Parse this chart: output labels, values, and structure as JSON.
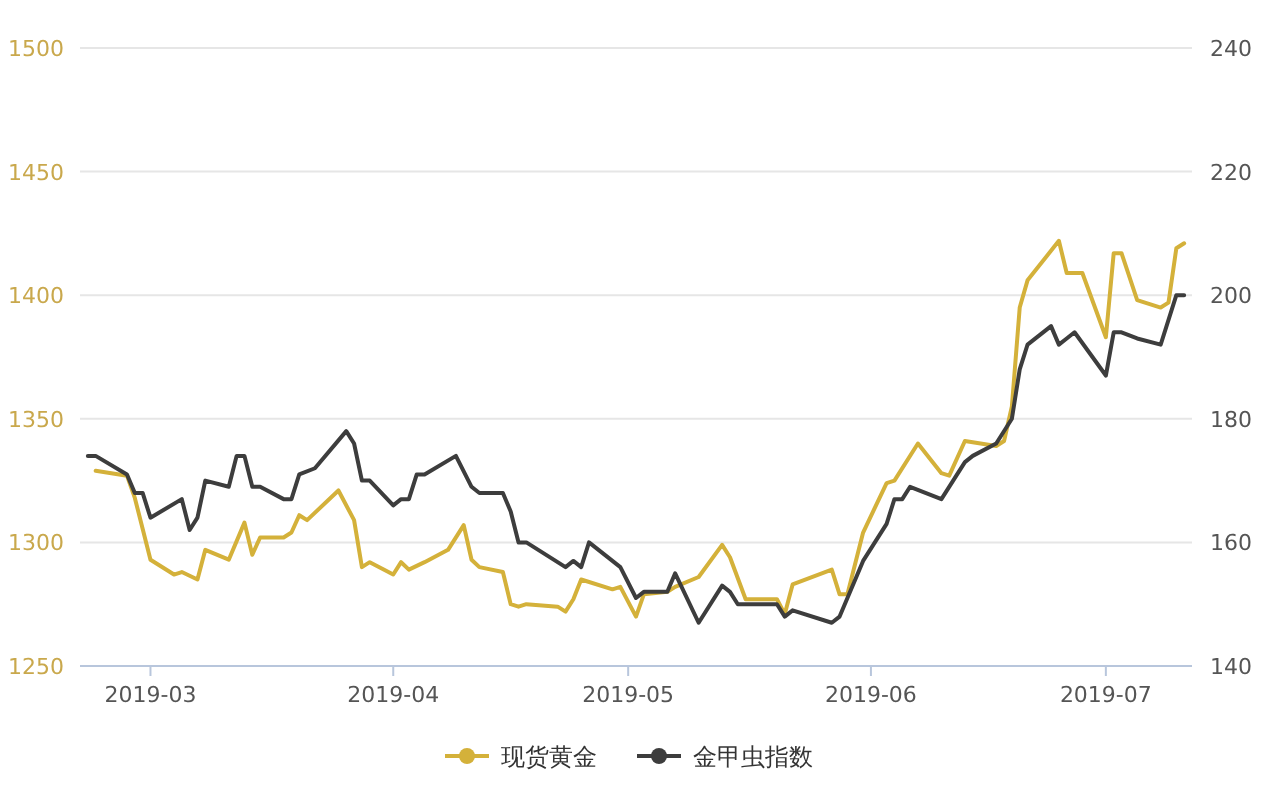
{
  "chart_data": {
    "type": "line",
    "xlim": [
      "2019-02-20",
      "2019-07-12"
    ],
    "xticks": [
      "2019-03",
      "2019-04",
      "2019-05",
      "2019-06",
      "2019-07"
    ],
    "ylim": [
      1250,
      1500
    ],
    "yticks": [
      1250,
      1300,
      1350,
      1400,
      1450,
      1500
    ],
    "y2lim": [
      140,
      240
    ],
    "y2ticks": [
      140,
      160,
      180,
      200,
      220,
      240
    ],
    "grid": "y",
    "legend": "bottom",
    "series": [
      {
        "name": "现货黄金",
        "color": "#d4b13a",
        "axis": "y",
        "x": [
          "2019-02-22",
          "2019-02-26",
          "2019-02-27",
          "2019-03-01",
          "2019-03-04",
          "2019-03-05",
          "2019-03-07",
          "2019-03-08",
          "2019-03-11",
          "2019-03-13",
          "2019-03-14",
          "2019-03-15",
          "2019-03-18",
          "2019-03-19",
          "2019-03-20",
          "2019-03-21",
          "2019-03-25",
          "2019-03-27",
          "2019-03-28",
          "2019-03-29",
          "2019-04-01",
          "2019-04-02",
          "2019-04-03",
          "2019-04-05",
          "2019-04-08",
          "2019-04-10",
          "2019-04-11",
          "2019-04-12",
          "2019-04-15",
          "2019-04-16",
          "2019-04-17",
          "2019-04-18",
          "2019-04-22",
          "2019-04-23",
          "2019-04-24",
          "2019-04-25",
          "2019-04-29",
          "2019-04-30",
          "2019-05-02",
          "2019-05-03",
          "2019-05-06",
          "2019-05-07",
          "2019-05-10",
          "2019-05-13",
          "2019-05-14",
          "2019-05-16",
          "2019-05-20",
          "2019-05-21",
          "2019-05-22",
          "2019-05-27",
          "2019-05-28",
          "2019-05-29",
          "2019-05-31",
          "2019-06-03",
          "2019-06-04",
          "2019-06-07",
          "2019-06-10",
          "2019-06-11",
          "2019-06-13",
          "2019-06-17",
          "2019-06-18",
          "2019-06-19",
          "2019-06-20",
          "2019-06-21",
          "2019-06-25",
          "2019-06-26",
          "2019-06-28",
          "2019-07-01",
          "2019-07-02",
          "2019-07-03",
          "2019-07-05",
          "2019-07-08",
          "2019-07-09",
          "2019-07-10",
          "2019-07-11"
        ],
        "values": [
          1329,
          1327,
          1318,
          1293,
          1287,
          1288,
          1285,
          1297,
          1293,
          1308,
          1295,
          1302,
          1302,
          1304,
          1311,
          1309,
          1321,
          1309,
          1290,
          1292,
          1287,
          1292,
          1289,
          1292,
          1297,
          1307,
          1293,
          1290,
          1288,
          1275,
          1274,
          1275,
          1274,
          1272,
          1277,
          1285,
          1281,
          1282,
          1270,
          1279,
          1280,
          1282,
          1286,
          1299,
          1294,
          1277,
          1277,
          1271,
          1283,
          1289,
          1279,
          1279,
          1304,
          1324,
          1325,
          1340,
          1328,
          1327,
          1341,
          1339,
          1341,
          1355,
          1395,
          1406,
          1422,
          1409,
          1409,
          1383,
          1417,
          1417,
          1398,
          1395,
          1397,
          1419,
          1421
        ]
      },
      {
        "name": "金甲虫指数",
        "color": "#3d3d3d",
        "axis": "y2",
        "x": [
          "2019-02-21",
          "2019-02-22",
          "2019-02-26",
          "2019-02-27",
          "2019-02-28",
          "2019-03-01",
          "2019-03-05",
          "2019-03-06",
          "2019-03-07",
          "2019-03-08",
          "2019-03-11",
          "2019-03-12",
          "2019-03-13",
          "2019-03-14",
          "2019-03-15",
          "2019-03-18",
          "2019-03-19",
          "2019-03-20",
          "2019-03-22",
          "2019-03-26",
          "2019-03-27",
          "2019-03-28",
          "2019-03-29",
          "2019-04-01",
          "2019-04-02",
          "2019-04-03",
          "2019-04-04",
          "2019-04-05",
          "2019-04-09",
          "2019-04-11",
          "2019-04-12",
          "2019-04-15",
          "2019-04-16",
          "2019-04-17",
          "2019-04-18",
          "2019-04-23",
          "2019-04-24",
          "2019-04-25",
          "2019-04-26",
          "2019-04-30",
          "2019-05-02",
          "2019-05-03",
          "2019-05-06",
          "2019-05-07",
          "2019-05-10",
          "2019-05-13",
          "2019-05-14",
          "2019-05-15",
          "2019-05-16",
          "2019-05-20",
          "2019-05-21",
          "2019-05-22",
          "2019-05-27",
          "2019-05-28",
          "2019-05-31",
          "2019-06-03",
          "2019-06-04",
          "2019-06-05",
          "2019-06-06",
          "2019-06-10",
          "2019-06-13",
          "2019-06-14",
          "2019-06-17",
          "2019-06-19",
          "2019-06-20",
          "2019-06-21",
          "2019-06-24",
          "2019-06-25",
          "2019-06-26",
          "2019-06-27",
          "2019-07-01",
          "2019-07-02",
          "2019-07-03",
          "2019-07-05",
          "2019-07-08",
          "2019-07-10",
          "2019-07-11"
        ],
        "values": [
          174,
          174,
          171,
          168,
          168,
          164,
          167,
          162,
          164,
          170,
          169,
          174,
          174,
          169,
          169,
          167,
          167,
          171,
          172,
          178,
          176,
          170,
          170,
          166,
          167,
          167,
          171,
          171,
          174,
          169,
          168,
          168,
          165,
          160,
          160,
          156,
          157,
          156,
          160,
          156,
          151,
          152,
          152,
          155,
          147,
          153,
          152,
          150,
          150,
          150,
          148,
          149,
          147,
          148,
          157,
          163,
          167,
          167,
          169,
          167,
          173,
          174,
          176,
          180,
          188,
          192,
          195,
          192,
          193,
          194,
          187,
          194,
          194,
          193,
          192,
          200,
          200
        ]
      }
    ]
  }
}
